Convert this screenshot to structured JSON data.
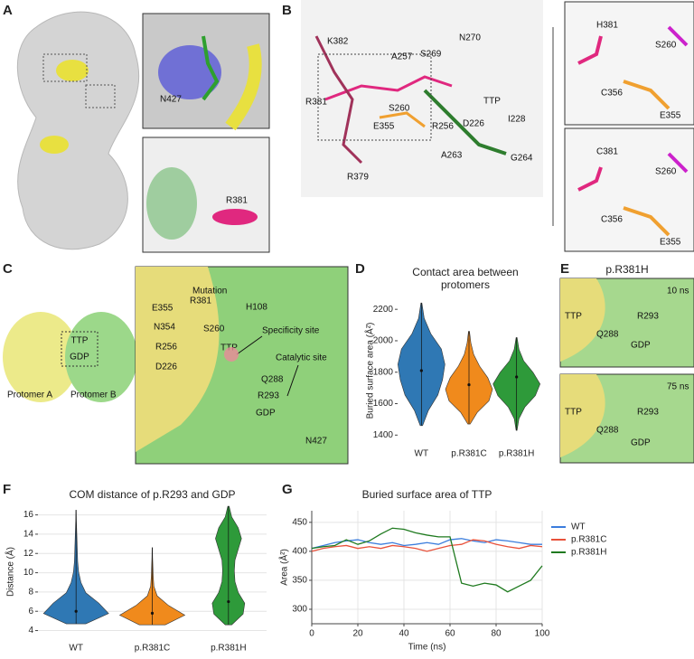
{
  "panel_labels": [
    "A",
    "B",
    "C",
    "D",
    "E",
    "F",
    "G"
  ],
  "panel_a": {
    "labels": [
      "N427",
      "R381"
    ]
  },
  "panel_b": {
    "labels": [
      "K382",
      "N270",
      "A257",
      "S269",
      "R381",
      "TTP",
      "I228",
      "S260",
      "R256",
      "D226",
      "E355",
      "A263",
      "G264",
      "R379"
    ],
    "inset_top": [
      "H381",
      "S260",
      "C356",
      "E355"
    ],
    "inset_bottom": [
      "C381",
      "S260",
      "C356",
      "E355"
    ]
  },
  "panel_c": {
    "overview": [
      "TTP",
      "GDP",
      "Protomer A",
      "Protomer B"
    ],
    "inset": [
      "Mutation",
      "R381",
      "H108",
      "E355",
      "N354",
      "S260",
      "R256",
      "TTP",
      "D226",
      "Specificity site",
      "Q288",
      "Catalytic site",
      "R293",
      "GDP",
      "N427"
    ]
  },
  "panel_e": {
    "title": "p.R381H",
    "top": [
      "10 ns",
      "TTP",
      "Q288",
      "R293",
      "GDP"
    ],
    "bottom": [
      "75 ns",
      "TTP",
      "Q288",
      "R293",
      "GDP"
    ]
  },
  "chart_data": [
    {
      "type": "violin",
      "title": "Contact area between protomers",
      "y_label": "Buried surface area (Å²)",
      "ylim": [
        1350,
        2270
      ],
      "yticks": [
        1400,
        1600,
        1800,
        2000,
        2200
      ],
      "grid": false,
      "groups": [
        {
          "name": "WT",
          "color": "#2f78b4",
          "min": 1460,
          "max": 2240,
          "median": 1810,
          "density": [
            0.05,
            0.3,
            0.7,
            0.9,
            1,
            0.85,
            0.4,
            0.12,
            0.02
          ]
        },
        {
          "name": "p.R381C",
          "color": "#f08a1c",
          "min": 1470,
          "max": 2060,
          "median": 1720,
          "density": [
            0.05,
            0.35,
            0.85,
            1,
            0.8,
            0.45,
            0.2,
            0.08,
            0.02
          ]
        },
        {
          "name": "p.R381H",
          "color": "#2e9a3a",
          "min": 1430,
          "max": 2020,
          "median": 1770,
          "density": [
            0.02,
            0.1,
            0.35,
            0.8,
            1,
            0.7,
            0.3,
            0.1,
            0.02
          ]
        }
      ]
    },
    {
      "type": "violin",
      "title": "COM distance of p.R293 and GDP",
      "y_label": "Distance (Å)",
      "ylim": [
        3.3,
        16.9
      ],
      "yticks": [
        4,
        6,
        8,
        10,
        12,
        14,
        16
      ],
      "grid": true,
      "groups": [
        {
          "name": "WT",
          "color": "#2f78b4",
          "min": 4.7,
          "max": 16.5,
          "median": 6,
          "density": [
            0.3,
            1,
            0.7,
            0.3,
            0.15,
            0.08,
            0.05,
            0.04,
            0.03,
            0.02,
            0.01,
            0.005
          ]
        },
        {
          "name": "p.R381C",
          "color": "#f08a1c",
          "min": 4.6,
          "max": 12.6,
          "median": 5.8,
          "density": [
            0.4,
            1,
            0.5,
            0.15,
            0.05,
            0.03,
            0.02,
            0.01,
            0.005
          ]
        },
        {
          "name": "p.R381H",
          "color": "#2e9a3a",
          "min": 4.6,
          "max": 16.9,
          "median": 7,
          "density": [
            0.1,
            0.45,
            0.5,
            0.3,
            0.2,
            0.18,
            0.2,
            0.3,
            0.4,
            0.3,
            0.1,
            0.02
          ]
        }
      ]
    },
    {
      "type": "line",
      "title": "Buried surface area of TTP",
      "x_label": "Time (ns)",
      "y_label": "Area (Å²)",
      "xlim": [
        0,
        100
      ],
      "xticks": [
        0,
        20,
        40,
        60,
        80,
        100
      ],
      "ylim": [
        275,
        470
      ],
      "yticks": [
        300,
        350,
        400,
        450
      ],
      "grid": true,
      "x": [
        0,
        5,
        10,
        15,
        20,
        25,
        30,
        35,
        40,
        45,
        50,
        55,
        60,
        65,
        70,
        75,
        80,
        85,
        90,
        95,
        100
      ],
      "series": [
        {
          "name": "WT",
          "color": "#3b7ddd",
          "values": [
            405,
            410,
            415,
            418,
            420,
            415,
            412,
            415,
            410,
            412,
            415,
            412,
            420,
            422,
            418,
            415,
            420,
            418,
            415,
            412,
            412
          ]
        },
        {
          "name": "p.R381C",
          "color": "#e8513a",
          "values": [
            400,
            405,
            408,
            410,
            405,
            408,
            405,
            410,
            408,
            405,
            400,
            405,
            410,
            412,
            420,
            418,
            412,
            408,
            405,
            410,
            408
          ]
        },
        {
          "name": "p.R381H",
          "color": "#1f7a1f",
          "values": [
            405,
            408,
            410,
            420,
            412,
            418,
            430,
            440,
            438,
            432,
            428,
            425,
            425,
            345,
            340,
            345,
            342,
            330,
            340,
            350,
            375
          ]
        }
      ]
    }
  ]
}
